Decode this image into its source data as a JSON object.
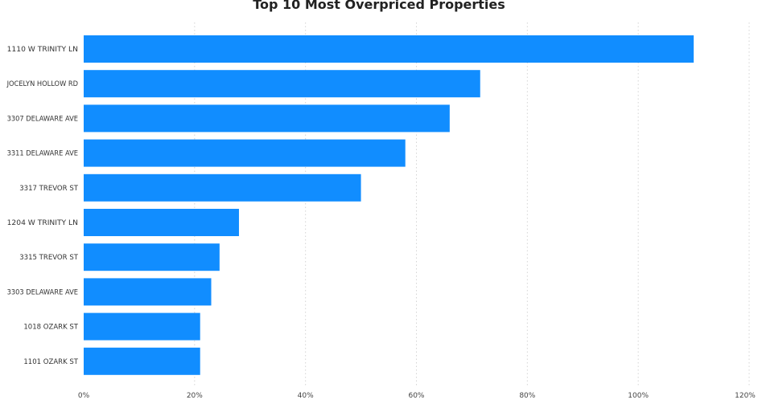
{
  "chart_data": {
    "type": "bar",
    "orientation": "horizontal",
    "title": "Top 10 Most Overpriced Properties",
    "xlabel": "",
    "ylabel": "",
    "xlim": [
      0,
      120
    ],
    "x_ticks": [
      "0%",
      "20%",
      "40%",
      "60%",
      "80%",
      "100%",
      "120%"
    ],
    "categories": [
      "1110 W TRINITY LN",
      "JOCELYN HOLLOW RD",
      "3307 DELAWARE AVE",
      "3311 DELAWARE AVE",
      "3317 TREVOR ST",
      "1204 W TRINITY LN",
      "3315 TREVOR ST",
      "3303 DELAWARE AVE",
      "1018 OZARK ST",
      "1101 OZARK ST"
    ],
    "values": [
      110,
      71.5,
      66,
      58,
      50,
      28,
      24.5,
      23,
      21,
      21
    ],
    "unit": "%",
    "bar_color": "#118DFF",
    "grid": "vertical dotted",
    "legend": "none"
  }
}
